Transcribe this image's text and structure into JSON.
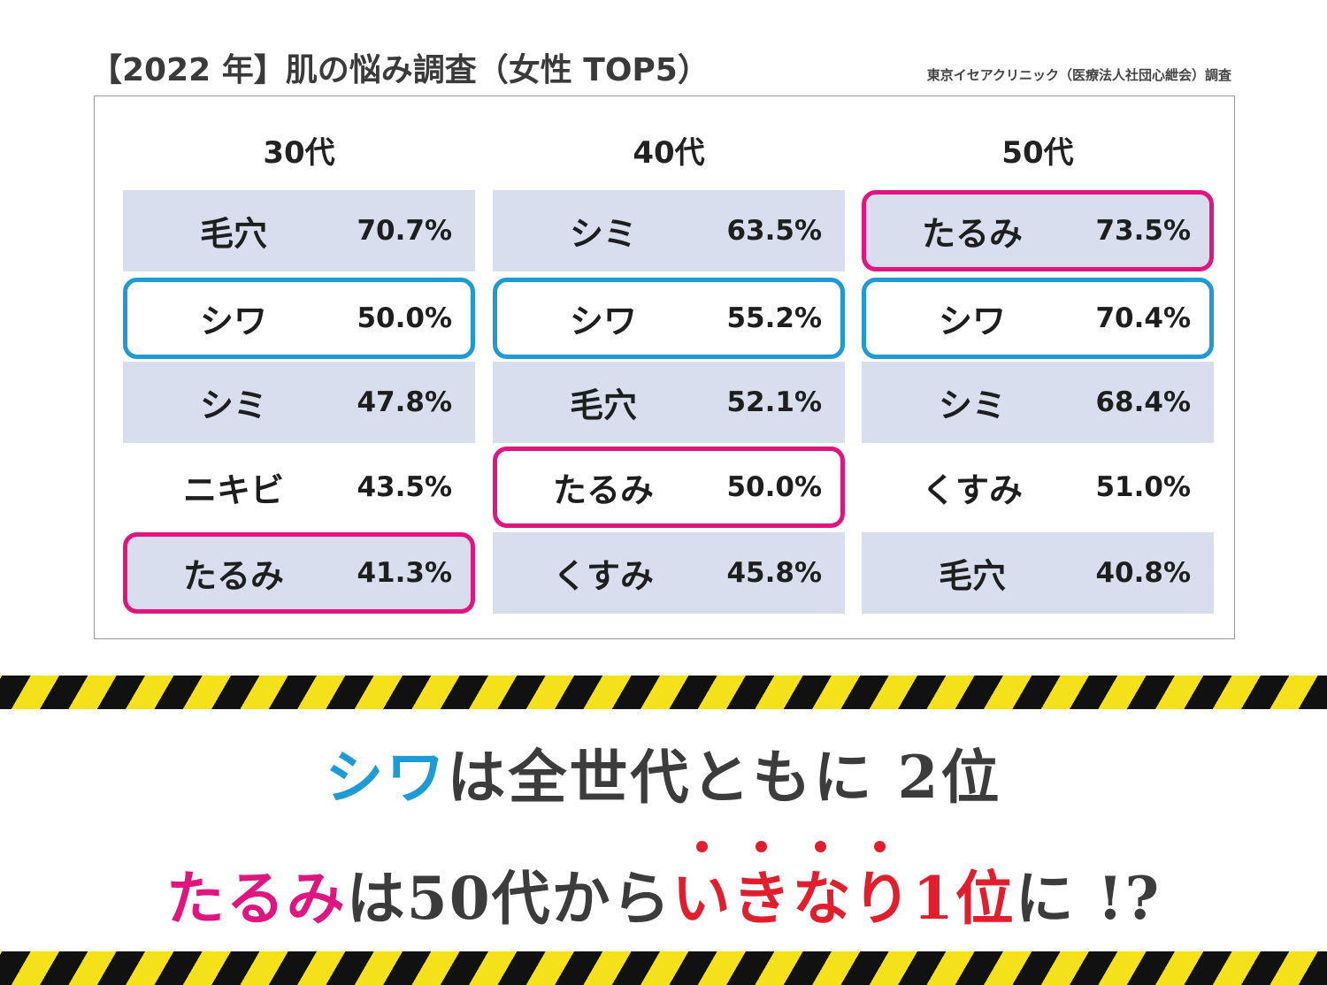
{
  "title": "【2022 年】肌の悩み調査（女性 TOP5）",
  "source": "東京イセアクリニック（医療法人社団心紲会）調査",
  "colors": {
    "blue": "#1e9ad6",
    "pink": "#e0157f",
    "red": "#e21e2c",
    "row_shade": "#d8deee"
  },
  "groups": [
    {
      "label": "30代",
      "rows": [
        {
          "concern": "毛穴",
          "pct": "70.7%",
          "highlight": "none",
          "shade": true
        },
        {
          "concern": "シワ",
          "pct": "50.0%",
          "highlight": "blue",
          "shade": false
        },
        {
          "concern": "シミ",
          "pct": "47.8%",
          "highlight": "none",
          "shade": true
        },
        {
          "concern": "ニキビ",
          "pct": "43.5%",
          "highlight": "none",
          "shade": false
        },
        {
          "concern": "たるみ",
          "pct": "41.3%",
          "highlight": "pink",
          "shade": true
        }
      ]
    },
    {
      "label": "40代",
      "rows": [
        {
          "concern": "シミ",
          "pct": "63.5%",
          "highlight": "none",
          "shade": true
        },
        {
          "concern": "シワ",
          "pct": "55.2%",
          "highlight": "blue",
          "shade": false
        },
        {
          "concern": "毛穴",
          "pct": "52.1%",
          "highlight": "none",
          "shade": true
        },
        {
          "concern": "たるみ",
          "pct": "50.0%",
          "highlight": "pink",
          "shade": false
        },
        {
          "concern": "くすみ",
          "pct": "45.8%",
          "highlight": "none",
          "shade": true
        }
      ]
    },
    {
      "label": "50代",
      "rows": [
        {
          "concern": "たるみ",
          "pct": "73.5%",
          "highlight": "pink",
          "shade": true
        },
        {
          "concern": "シワ",
          "pct": "70.4%",
          "highlight": "blue",
          "shade": false
        },
        {
          "concern": "シミ",
          "pct": "68.4%",
          "highlight": "none",
          "shade": true
        },
        {
          "concern": "くすみ",
          "pct": "51.0%",
          "highlight": "none",
          "shade": false
        },
        {
          "concern": "毛穴",
          "pct": "40.8%",
          "highlight": "none",
          "shade": true
        }
      ]
    }
  ],
  "headline1": {
    "emph": "シワ",
    "rest": "は全世代ともに 2位"
  },
  "headline2": {
    "emph": "たるみ",
    "mid": "は50代から",
    "red": "いきなり1位",
    "end": "に !?"
  }
}
